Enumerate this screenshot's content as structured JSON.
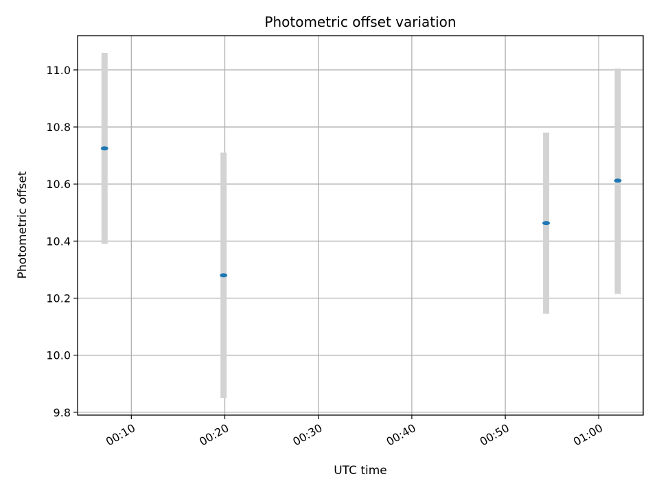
{
  "chart_data": {
    "type": "scatter",
    "title": "Photometric offset variation",
    "xlabel": "UTC time",
    "ylabel": "Photometric offset",
    "x_tick_labels": [
      "00:10",
      "00:20",
      "00:30",
      "00:40",
      "00:50",
      "01:00"
    ],
    "x_ticks": [
      "00:10",
      "00:20",
      "00:30",
      "00:40",
      "00:50",
      "01:00"
    ],
    "xlim": [
      "00:04:15",
      "01:04:45"
    ],
    "y_tick_labels": [
      "9.8",
      "10.0",
      "10.2",
      "10.4",
      "10.6",
      "10.8",
      "11.0"
    ],
    "y_ticks": [
      9.8,
      10.0,
      10.2,
      10.4,
      10.6,
      10.8,
      11.0
    ],
    "ylim": [
      9.79,
      11.12
    ],
    "grid": true,
    "colors": {
      "marker": "#1f77b4",
      "errorbar": "#d3d3d3",
      "grid": "#b0b0b0"
    },
    "series": [
      {
        "points": [
          {
            "x": "00:07:08",
            "y": 10.725,
            "ylow": 10.39,
            "yhigh": 11.06
          },
          {
            "x": "00:19:52",
            "y": 10.28,
            "ylow": 9.85,
            "yhigh": 10.71
          },
          {
            "x": "00:54:22",
            "y": 10.463,
            "ylow": 10.145,
            "yhigh": 10.78
          },
          {
            "x": "01:02:02",
            "y": 10.612,
            "ylow": 10.215,
            "yhigh": 11.005
          }
        ]
      }
    ]
  }
}
